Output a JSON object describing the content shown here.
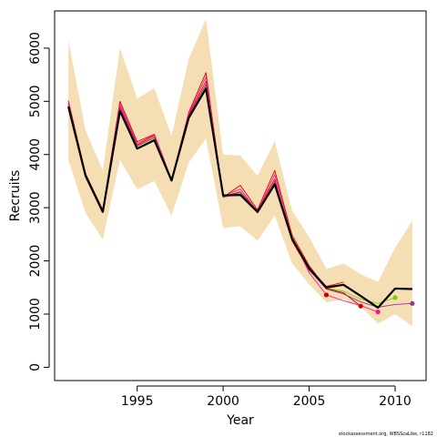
{
  "chart_data": {
    "type": "line",
    "title": "",
    "xlabel": "Year",
    "ylabel": "Recruits",
    "xlim": [
      1990.2,
      2011.8
    ],
    "ylim": [
      -250,
      6700
    ],
    "x_ticks": [
      1995,
      2000,
      2005,
      2010
    ],
    "y_ticks": [
      0,
      1000,
      2000,
      3000,
      4000,
      5000,
      6000
    ],
    "grid": false,
    "legend": "none",
    "colors": {
      "band": "#f5deb3",
      "main": "#000000",
      "retro_1": "#ff0000",
      "retro_2": "#cc0000",
      "retro_3": "#ff1493",
      "retro_4": "#7fcc00",
      "retro_5": "#993399"
    },
    "confidence_band": {
      "x": [
        1991,
        1992,
        1993,
        1994,
        1995,
        1996,
        1997,
        1998,
        1999,
        2000,
        2001,
        2002,
        2003,
        2004,
        2005,
        2006,
        2007,
        2008,
        2009,
        2010,
        2011
      ],
      "upper": [
        6150,
        4450,
        3700,
        6000,
        5050,
        5250,
        4350,
        5800,
        6550,
        4000,
        3980,
        3600,
        4250,
        2950,
        2450,
        1850,
        1950,
        1750,
        1600,
        2250,
        2750
      ],
      "lower": [
        3900,
        2900,
        2400,
        3900,
        3350,
        3500,
        2850,
        3850,
        4300,
        2620,
        2650,
        2380,
        2850,
        1960,
        1560,
        1220,
        1280,
        1140,
        820,
        1000,
        770
      ]
    },
    "series": [
      {
        "values": [
          4900,
          3600,
          2920,
          4820,
          4110,
          4270,
          3510,
          4690,
          5240,
          3230,
          3240,
          2920,
          3440,
          2420,
          1860,
          1500,
          1550,
          1340,
          1120,
          1480,
          1470
        ]
      },
      {
        "values": [
          4950,
          3620,
          2950,
          4900,
          4180,
          4350,
          3520,
          4740,
          5380,
          3210,
          3300,
          2940,
          3540,
          2380,
          1820,
          1520,
          1600
        ]
      },
      {
        "values": [
          5010,
          3640,
          2960,
          5000,
          4240,
          4380,
          3530,
          4790,
          5540,
          3200,
          3420,
          2960,
          3700,
          2490,
          1910,
          1480,
          1400,
          1150
        ],
        "end_marker": true
      },
      {
        "values": [
          4980,
          3610,
          2940,
          4950,
          4200,
          4370,
          3510,
          4760,
          5460,
          3220,
          3350,
          2930,
          3620,
          2440,
          1780,
          1360,
          1250,
          1160,
          1040
        ],
        "end_marker": true
      },
      {
        "values": [
          4920,
          3590,
          2930,
          4860,
          4150,
          4310,
          3500,
          4700,
          5300,
          3190,
          3280,
          2900,
          3480,
          2400,
          1850,
          1490,
          1430,
          1280,
          1200,
          1310
        ],
        "end_marker": true
      },
      {
        "values": [
          4940,
          3600,
          2935,
          4880,
          4160,
          4320,
          3505,
          4720,
          5320,
          3200,
          3290,
          2910,
          3500,
          2410,
          1830,
          1470,
          1380,
          1230,
          1130,
          1180,
          1200
        ],
        "end_marker": true
      }
    ],
    "retro_markers": [
      {
        "x": 2006,
        "y": 1360
      }
    ],
    "footnote": "stockassessment.org, WBSScaLike, r1182"
  }
}
